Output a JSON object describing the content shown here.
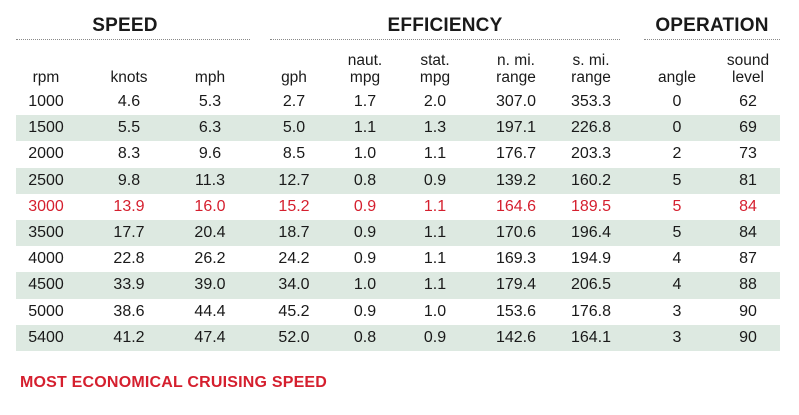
{
  "groups": {
    "speed": "SPEED",
    "efficiency": "EFFICIENCY",
    "operation": "OPERATION"
  },
  "columns": {
    "rpm": [
      "rpm"
    ],
    "knots": [
      "knots"
    ],
    "mph": [
      "mph"
    ],
    "gph": [
      "gph"
    ],
    "naut_mpg": [
      "naut.",
      "mpg"
    ],
    "stat_mpg": [
      "stat.",
      "mpg"
    ],
    "n_mi_range": [
      "n. mi.",
      "range"
    ],
    "s_mi_range": [
      "s. mi.",
      "range"
    ],
    "angle": [
      "angle"
    ],
    "sound_level": [
      "sound",
      "level"
    ]
  },
  "rows": [
    {
      "rpm": "1000",
      "knots": "4.6",
      "mph": "5.3",
      "gph": "2.7",
      "naut_mpg": "1.7",
      "stat_mpg": "2.0",
      "n_mi_range": "307.0",
      "s_mi_range": "353.3",
      "angle": "0",
      "sound_level": "62"
    },
    {
      "rpm": "1500",
      "knots": "5.5",
      "mph": "6.3",
      "gph": "5.0",
      "naut_mpg": "1.1",
      "stat_mpg": "1.3",
      "n_mi_range": "197.1",
      "s_mi_range": "226.8",
      "angle": "0",
      "sound_level": "69"
    },
    {
      "rpm": "2000",
      "knots": "8.3",
      "mph": "9.6",
      "gph": "8.5",
      "naut_mpg": "1.0",
      "stat_mpg": "1.1",
      "n_mi_range": "176.7",
      "s_mi_range": "203.3",
      "angle": "2",
      "sound_level": "73"
    },
    {
      "rpm": "2500",
      "knots": "9.8",
      "mph": "11.3",
      "gph": "12.7",
      "naut_mpg": "0.8",
      "stat_mpg": "0.9",
      "n_mi_range": "139.2",
      "s_mi_range": "160.2",
      "angle": "5",
      "sound_level": "81"
    },
    {
      "rpm": "3000",
      "knots": "13.9",
      "mph": "16.0",
      "gph": "15.2",
      "naut_mpg": "0.9",
      "stat_mpg": "1.1",
      "n_mi_range": "164.6",
      "s_mi_range": "189.5",
      "angle": "5",
      "sound_level": "84",
      "highlight": true
    },
    {
      "rpm": "3500",
      "knots": "17.7",
      "mph": "20.4",
      "gph": "18.7",
      "naut_mpg": "0.9",
      "stat_mpg": "1.1",
      "n_mi_range": "170.6",
      "s_mi_range": "196.4",
      "angle": "5",
      "sound_level": "84"
    },
    {
      "rpm": "4000",
      "knots": "22.8",
      "mph": "26.2",
      "gph": "24.2",
      "naut_mpg": "0.9",
      "stat_mpg": "1.1",
      "n_mi_range": "169.3",
      "s_mi_range": "194.9",
      "angle": "4",
      "sound_level": "87"
    },
    {
      "rpm": "4500",
      "knots": "33.9",
      "mph": "39.0",
      "gph": "34.0",
      "naut_mpg": "1.0",
      "stat_mpg": "1.1",
      "n_mi_range": "179.4",
      "s_mi_range": "206.5",
      "angle": "4",
      "sound_level": "88"
    },
    {
      "rpm": "5000",
      "knots": "38.6",
      "mph": "44.4",
      "gph": "45.2",
      "naut_mpg": "0.9",
      "stat_mpg": "1.0",
      "n_mi_range": "153.6",
      "s_mi_range": "176.8",
      "angle": "3",
      "sound_level": "90"
    },
    {
      "rpm": "5400",
      "knots": "41.2",
      "mph": "47.4",
      "gph": "52.0",
      "naut_mpg": "0.8",
      "stat_mpg": "0.9",
      "n_mi_range": "142.6",
      "s_mi_range": "164.1",
      "angle": "3",
      "sound_level": "90"
    }
  ],
  "footnote": "MOST ECONOMICAL CRUISING SPEED",
  "colors": {
    "highlight": "#d51f2e",
    "row_shade": "#dde9e1",
    "text": "#1a1a1a"
  }
}
